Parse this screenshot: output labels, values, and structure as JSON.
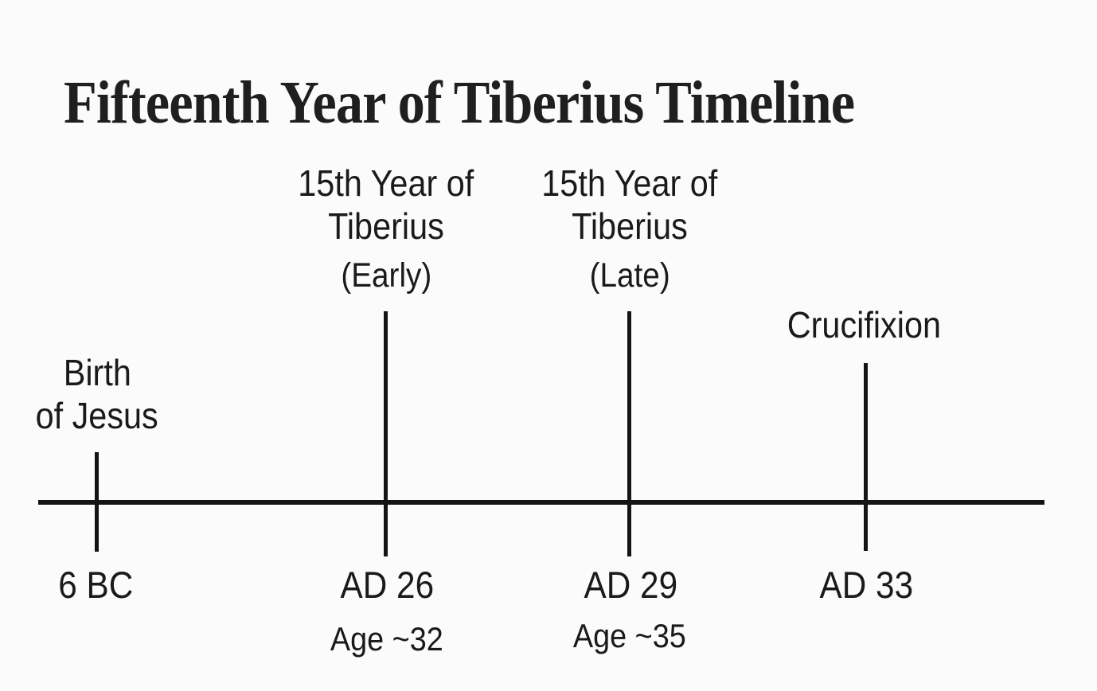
{
  "page": {
    "title": "Fifteenth Year of Tiberius Timeline",
    "background": "#fbfbfb",
    "text_color": "#1a1a1a",
    "line_color": "#141414"
  },
  "timeline": {
    "events": [
      {
        "line1": "Birth",
        "line2": "of Jesus",
        "date": "6 BC"
      },
      {
        "line1": "15th Year of",
        "line2": "Tiberius",
        "qualifier": "(Early)",
        "date": "AD 26",
        "age": "Age ~32"
      },
      {
        "line1": "15th Year of",
        "line2": "Tiberius",
        "qualifier": "(Late)",
        "date": "AD 29",
        "age": "Age ~35"
      },
      {
        "line1": "Crucifixion",
        "date": "AD 33"
      }
    ]
  }
}
